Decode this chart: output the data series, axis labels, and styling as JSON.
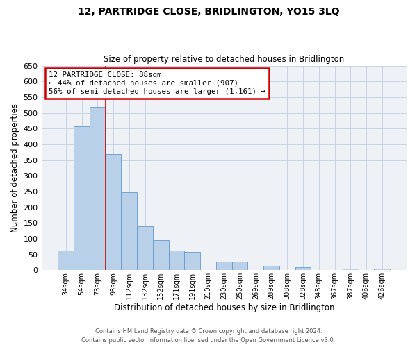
{
  "title": "12, PARTRIDGE CLOSE, BRIDLINGTON, YO15 3LQ",
  "subtitle": "Size of property relative to detached houses in Bridlington",
  "xlabel": "Distribution of detached houses by size in Bridlington",
  "ylabel": "Number of detached properties",
  "bin_labels": [
    "34sqm",
    "54sqm",
    "73sqm",
    "93sqm",
    "112sqm",
    "132sqm",
    "152sqm",
    "171sqm",
    "191sqm",
    "210sqm",
    "230sqm",
    "250sqm",
    "269sqm",
    "289sqm",
    "308sqm",
    "328sqm",
    "348sqm",
    "367sqm",
    "387sqm",
    "406sqm",
    "426sqm"
  ],
  "bar_heights": [
    62,
    458,
    520,
    370,
    248,
    140,
    95,
    62,
    57,
    0,
    28,
    28,
    0,
    13,
    0,
    10,
    0,
    0,
    5,
    0,
    5
  ],
  "bar_color": "#b8d0e8",
  "bar_edge_color": "#6699cc",
  "ylim": [
    0,
    650
  ],
  "yticks": [
    0,
    50,
    100,
    150,
    200,
    250,
    300,
    350,
    400,
    450,
    500,
    550,
    600,
    650
  ],
  "vline_color": "#cc0000",
  "vline_x": 2.5,
  "annotation_title": "12 PARTRIDGE CLOSE: 88sqm",
  "annotation_line1": "← 44% of detached houses are smaller (907)",
  "annotation_line2": "56% of semi-detached houses are larger (1,161) →",
  "annotation_box_edgecolor": "#cc0000",
  "footer1": "Contains HM Land Registry data © Crown copyright and database right 2024.",
  "footer2": "Contains public sector information licensed under the Open Government Licence v3.0.",
  "bg_color": "#eef2f7",
  "grid_color": "#c5cfe0"
}
